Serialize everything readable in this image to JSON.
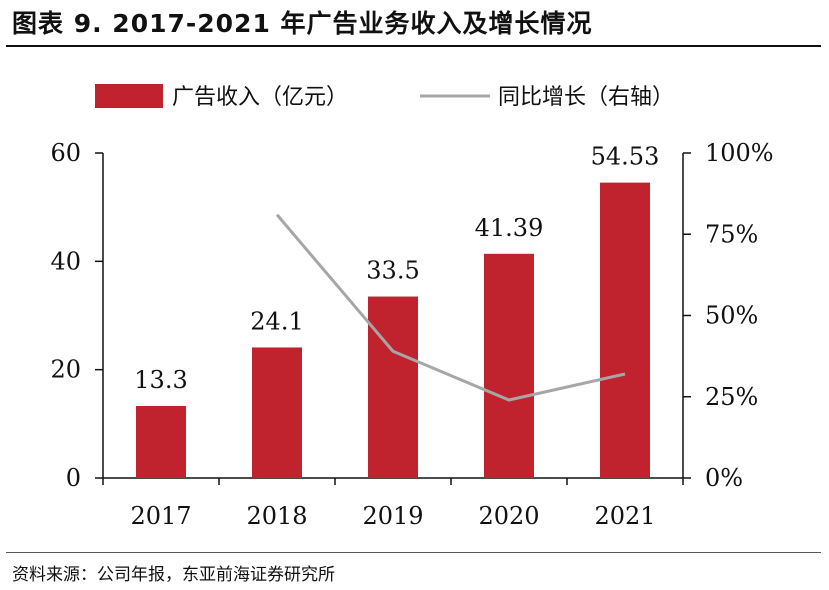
{
  "title": "图表 9.  2017-2021 年广告业务收入及增长情况",
  "source": "资料来源：公司年报，东亚前海证券研究所",
  "colors": {
    "bar": "#c0222e",
    "line": "#a6a6a6",
    "axis": "#111111"
  },
  "chart_data": {
    "type": "bar",
    "categories": [
      "2017",
      "2018",
      "2019",
      "2020",
      "2021"
    ],
    "series": [
      {
        "name": "广告收入（亿元）",
        "type": "bar",
        "axis": "left",
        "values": [
          13.3,
          24.1,
          33.5,
          41.39,
          54.53
        ],
        "labels": [
          "13.3",
          "24.1",
          "33.5",
          "41.39",
          "54.53"
        ]
      },
      {
        "name": "同比增长（右轴）",
        "type": "line",
        "axis": "right",
        "values": [
          null,
          0.81,
          0.39,
          0.24,
          0.32
        ]
      }
    ],
    "y_left": {
      "ylim": [
        0,
        60
      ],
      "ticks": [
        0,
        20,
        40,
        60
      ],
      "tick_labels": [
        "0",
        "20",
        "40",
        "60"
      ]
    },
    "y_right": {
      "ylim": [
        0,
        1
      ],
      "ticks": [
        0,
        0.25,
        0.5,
        0.75,
        1
      ],
      "tick_labels": [
        "0%",
        "25%",
        "50%",
        "75%",
        "100%"
      ]
    },
    "legend_position": "top",
    "grid": false
  }
}
